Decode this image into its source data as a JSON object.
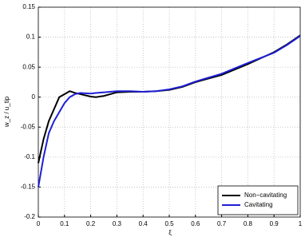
{
  "chart_data": {
    "type": "line",
    "xlabel": "ξ",
    "ylabel": "w_z / u_tip",
    "x": [
      0,
      0.02,
      0.04,
      0.06,
      0.08,
      0.1,
      0.12,
      0.14,
      0.16,
      0.2,
      0.22,
      0.25,
      0.3,
      0.35,
      0.4,
      0.45,
      0.5,
      0.55,
      0.6,
      0.7,
      0.8,
      0.9,
      0.95,
      1.0
    ],
    "series": [
      {
        "name": "Non−cavitating",
        "color": "#000000",
        "values": [
          -0.11,
          -0.07,
          -0.04,
          -0.02,
          0.0,
          0.005,
          0.01,
          0.007,
          0.005,
          0.001,
          0.0,
          0.002,
          0.008,
          0.009,
          0.009,
          0.01,
          0.012,
          0.017,
          0.025,
          0.037,
          0.055,
          0.075,
          0.088,
          0.103
        ]
      },
      {
        "name": "Cavitating",
        "color": "#1f1fd6",
        "values": [
          -0.15,
          -0.1,
          -0.06,
          -0.04,
          -0.025,
          -0.01,
          0.0,
          0.005,
          0.007,
          0.006,
          0.007,
          0.008,
          0.01,
          0.01,
          0.009,
          0.01,
          0.013,
          0.018,
          0.026,
          0.039,
          0.057,
          0.074,
          0.087,
          0.102
        ]
      }
    ],
    "xlim": [
      0,
      1
    ],
    "xticks": [
      0,
      0.1,
      0.2,
      0.3,
      0.4,
      0.5,
      0.6,
      0.7,
      0.8,
      0.9,
      1
    ],
    "ylim": [
      -0.2,
      0.15
    ],
    "yticks": [
      -0.2,
      -0.15,
      -0.1,
      -0.05,
      0,
      0.05,
      0.1,
      0.15
    ],
    "grid": true,
    "legend": "lower-right"
  }
}
